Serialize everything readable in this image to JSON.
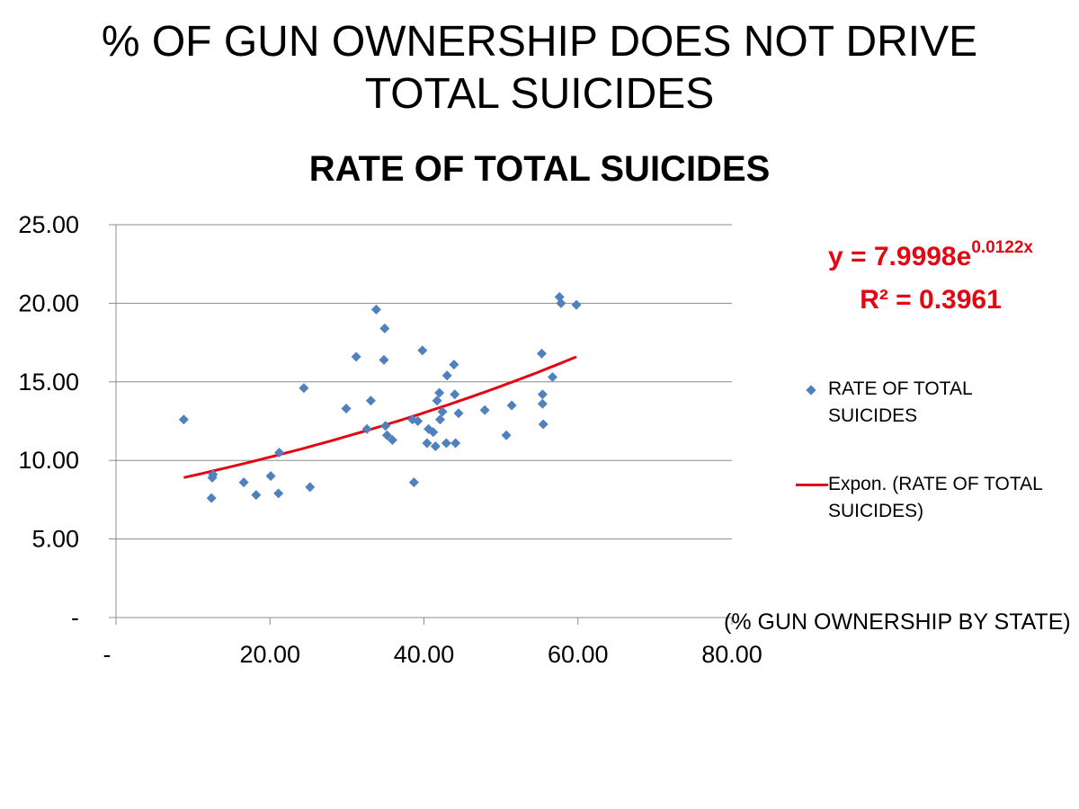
{
  "slide": {
    "title_line1": "% OF GUN OWNERSHIP DOES NOT DRIVE",
    "title_line2": "TOTAL SUICIDES"
  },
  "colors": {
    "marker": "#4f81bd",
    "trendline": "#e30613",
    "gridline": "#8c8c8c",
    "equation": "#e30613"
  },
  "trendline_label": {
    "equation_prefix": "y = 7.9998e",
    "equation_exponent": "0.0122x",
    "r_squared": "R² = 0.3961"
  },
  "legend": {
    "series_label": "RATE OF TOTAL SUICIDES",
    "trend_label": "Expon. (RATE OF TOTAL SUICIDES)"
  },
  "chart_data": {
    "type": "scatter",
    "title": "RATE OF TOTAL SUICIDES",
    "xlabel": "(% GUN OWNERSHIP BY STATE)",
    "ylabel": "",
    "xlim": [
      0,
      80
    ],
    "ylim": [
      0,
      25
    ],
    "x_ticks": [
      0,
      20,
      40,
      60,
      80
    ],
    "y_ticks": [
      0,
      5,
      10,
      15,
      20,
      25
    ],
    "x_tick_labels": [
      "-",
      "20.00",
      "40.00",
      "60.00",
      "80.00"
    ],
    "y_tick_labels": [
      "-",
      "5.00",
      "10.00",
      "15.00",
      "20.00",
      "25.00"
    ],
    "grid": "horizontal",
    "legend_position": "right",
    "series": [
      {
        "name": "RATE OF TOTAL SUICIDES",
        "points": [
          [
            8.8,
            12.6
          ],
          [
            12.4,
            7.6
          ],
          [
            12.5,
            8.9
          ],
          [
            12.6,
            9.1
          ],
          [
            16.6,
            8.6
          ],
          [
            18.2,
            7.8
          ],
          [
            20.1,
            9.0
          ],
          [
            21.1,
            7.9
          ],
          [
            21.2,
            10.5
          ],
          [
            24.4,
            14.6
          ],
          [
            25.2,
            8.3
          ],
          [
            29.9,
            13.3
          ],
          [
            31.2,
            16.6
          ],
          [
            32.6,
            12.0
          ],
          [
            33.1,
            13.8
          ],
          [
            33.8,
            19.6
          ],
          [
            34.8,
            16.4
          ],
          [
            34.9,
            18.4
          ],
          [
            35.0,
            12.2
          ],
          [
            35.2,
            11.6
          ],
          [
            35.9,
            11.3
          ],
          [
            38.5,
            12.6
          ],
          [
            38.7,
            8.6
          ],
          [
            39.2,
            12.5
          ],
          [
            39.8,
            17.0
          ],
          [
            40.4,
            11.1
          ],
          [
            40.6,
            12.0
          ],
          [
            41.2,
            11.8
          ],
          [
            41.5,
            10.9
          ],
          [
            41.7,
            13.8
          ],
          [
            42.0,
            14.3
          ],
          [
            42.1,
            12.6
          ],
          [
            42.4,
            13.1
          ],
          [
            42.9,
            11.1
          ],
          [
            43.0,
            15.4
          ],
          [
            43.9,
            16.1
          ],
          [
            44.0,
            14.2
          ],
          [
            44.1,
            11.1
          ],
          [
            44.5,
            13.0
          ],
          [
            47.9,
            13.2
          ],
          [
            50.7,
            11.6
          ],
          [
            51.4,
            13.5
          ],
          [
            55.3,
            16.8
          ],
          [
            55.4,
            14.2
          ],
          [
            55.4,
            13.6
          ],
          [
            55.5,
            12.3
          ],
          [
            56.7,
            15.3
          ],
          [
            57.6,
            20.4
          ],
          [
            57.8,
            20.0
          ],
          [
            59.8,
            19.9
          ]
        ]
      },
      {
        "name": "Expon. (RATE OF TOTAL SUICIDES)",
        "trend": {
          "type": "exponential",
          "a": 7.9998,
          "b": 0.0122,
          "x_from": 8.8,
          "x_to": 59.8
        }
      }
    ]
  }
}
